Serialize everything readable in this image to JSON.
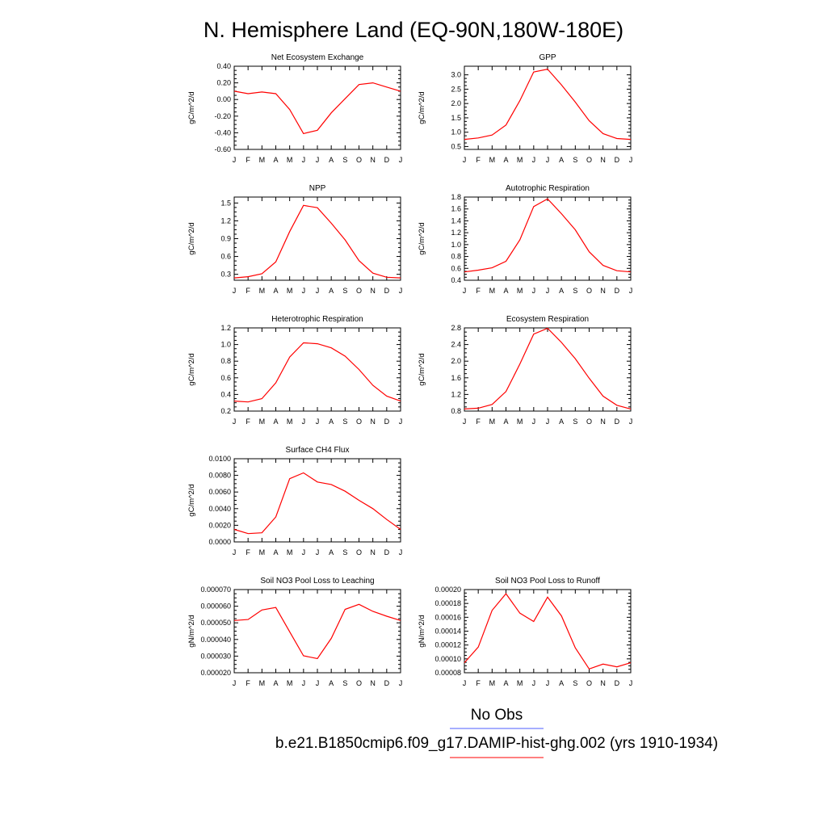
{
  "figure": {
    "title": "N. Hemisphere Land (EQ-90N,180W-180E)",
    "legend": [
      {
        "label": "No Obs",
        "color": "#4d5eff"
      },
      {
        "label": "b.e21.B1850cmip6.f09_g17.DAMIP-hist-ghg.002 (yrs 1910-1934)",
        "color": "#ff0000"
      }
    ],
    "line_color": "#ff0000",
    "axis_color": "#000000"
  },
  "chart_data": [
    {
      "type": "line",
      "title": "Net Ecosystem Exchange",
      "ylabel": "gC/m^2/d",
      "x": [
        "J",
        "F",
        "M",
        "A",
        "M",
        "J",
        "J",
        "A",
        "S",
        "O",
        "N",
        "D",
        "J"
      ],
      "ylim": [
        -0.6,
        0.4
      ],
      "yticks": [
        "0.40",
        "0.20",
        "0.00",
        "-0.20",
        "-0.40",
        "-0.60"
      ],
      "series": [
        {
          "values": [
            0.1,
            0.07,
            0.09,
            0.07,
            -0.12,
            -0.41,
            -0.37,
            -0.16,
            0.01,
            0.18,
            0.2,
            0.15,
            0.1
          ]
        }
      ]
    },
    {
      "type": "line",
      "title": "GPP",
      "ylabel": "gC/m^2/d",
      "x": [
        "J",
        "F",
        "M",
        "A",
        "M",
        "J",
        "J",
        "A",
        "S",
        "O",
        "N",
        "D",
        "J"
      ],
      "ylim": [
        0.4,
        3.3
      ],
      "yticks": [
        "3.0",
        "2.5",
        "2.0",
        "1.5",
        "1.0",
        "0.5"
      ],
      "series": [
        {
          "values": [
            0.75,
            0.8,
            0.9,
            1.25,
            2.1,
            3.1,
            3.2,
            2.65,
            2.05,
            1.4,
            0.95,
            0.78,
            0.75
          ]
        }
      ]
    },
    {
      "type": "line",
      "title": "NPP",
      "ylabel": "gC/m^2/d",
      "x": [
        "J",
        "F",
        "M",
        "A",
        "M",
        "J",
        "J",
        "A",
        "S",
        "O",
        "N",
        "D",
        "J"
      ],
      "ylim": [
        0.2,
        1.6
      ],
      "yticks": [
        "1.5",
        "1.2",
        "0.9",
        "0.6",
        "0.3"
      ],
      "series": [
        {
          "values": [
            0.24,
            0.26,
            0.31,
            0.51,
            1.02,
            1.46,
            1.42,
            1.16,
            0.88,
            0.53,
            0.32,
            0.25,
            0.24
          ]
        }
      ]
    },
    {
      "type": "line",
      "title": "Autotrophic Respiration",
      "ylabel": "gC/m^2/d",
      "x": [
        "J",
        "F",
        "M",
        "A",
        "M",
        "J",
        "J",
        "A",
        "S",
        "O",
        "N",
        "D",
        "J"
      ],
      "ylim": [
        0.4,
        1.8
      ],
      "yticks": [
        "1.8",
        "1.6",
        "1.4",
        "1.2",
        "1.0",
        "0.8",
        "0.6",
        "0.4"
      ],
      "series": [
        {
          "values": [
            0.54,
            0.57,
            0.61,
            0.72,
            1.08,
            1.64,
            1.77,
            1.52,
            1.25,
            0.88,
            0.65,
            0.56,
            0.54
          ]
        }
      ]
    },
    {
      "type": "line",
      "title": "Heterotrophic Respiration",
      "ylabel": "gC/m^2/d",
      "x": [
        "J",
        "F",
        "M",
        "A",
        "M",
        "J",
        "J",
        "A",
        "S",
        "O",
        "N",
        "D",
        "J"
      ],
      "ylim": [
        0.2,
        1.2
      ],
      "yticks": [
        "1.2",
        "1.0",
        "0.8",
        "0.6",
        "0.4",
        "0.2"
      ],
      "series": [
        {
          "values": [
            0.32,
            0.31,
            0.35,
            0.54,
            0.85,
            1.02,
            1.01,
            0.96,
            0.86,
            0.7,
            0.51,
            0.38,
            0.32
          ]
        }
      ]
    },
    {
      "type": "line",
      "title": "Ecosystem Respiration",
      "ylabel": "gC/m^2/d",
      "x": [
        "J",
        "F",
        "M",
        "A",
        "M",
        "J",
        "J",
        "A",
        "S",
        "O",
        "N",
        "D",
        "J"
      ],
      "ylim": [
        0.8,
        2.8
      ],
      "yticks": [
        "2.8",
        "2.4",
        "2.0",
        "1.6",
        "1.2",
        "0.8"
      ],
      "series": [
        {
          "values": [
            0.85,
            0.87,
            0.96,
            1.27,
            1.93,
            2.65,
            2.79,
            2.45,
            2.06,
            1.59,
            1.16,
            0.94,
            0.85
          ]
        }
      ]
    },
    {
      "type": "line",
      "title": "Surface CH4 Flux",
      "ylabel": "gC/m^2/d",
      "x": [
        "J",
        "F",
        "M",
        "A",
        "M",
        "J",
        "J",
        "A",
        "S",
        "O",
        "N",
        "D",
        "J"
      ],
      "ylim": [
        0.0,
        0.01
      ],
      "yticks": [
        "0.0100",
        "0.0080",
        "0.0060",
        "0.0040",
        "0.0020",
        "0.0000"
      ],
      "series": [
        {
          "values": [
            0.0015,
            0.001,
            0.0011,
            0.003,
            0.0076,
            0.0083,
            0.0072,
            0.0069,
            0.0061,
            0.005,
            0.004,
            0.0027,
            0.0015
          ]
        }
      ]
    },
    {
      "type": "line",
      "title": "Soil NO3 Pool Loss to Leaching",
      "ylabel": "gN/m^2/d",
      "x": [
        "J",
        "F",
        "M",
        "A",
        "M",
        "J",
        "J",
        "A",
        "S",
        "O",
        "N",
        "D",
        "J"
      ],
      "ylim": [
        2e-05,
        7e-05
      ],
      "yticks": [
        "0.000070",
        "0.000060",
        "0.000050",
        "0.000040",
        "0.000030",
        "0.000020"
      ],
      "series": [
        {
          "values": [
            5.14e-05,
            5.2e-05,
            5.77e-05,
            5.92e-05,
            4.46e-05,
            3.02e-05,
            2.85e-05,
            4.07e-05,
            5.81e-05,
            6.11e-05,
            5.69e-05,
            5.4e-05,
            5.14e-05
          ]
        }
      ]
    },
    {
      "type": "line",
      "title": "Soil NO3 Pool Loss to Runoff",
      "ylabel": "gN/m^2/d",
      "x": [
        "J",
        "F",
        "M",
        "A",
        "M",
        "J",
        "J",
        "A",
        "S",
        "O",
        "N",
        "D",
        "J"
      ],
      "ylim": [
        8e-05,
        0.0002
      ],
      "yticks": [
        "0.00020",
        "0.00018",
        "0.00016",
        "0.00014",
        "0.00012",
        "0.00010",
        "0.00008"
      ],
      "series": [
        {
          "values": [
            9.45e-05,
            0.000117,
            0.00017,
            0.000194,
            0.000166,
            0.000154,
            0.000189,
            0.000162,
            0.000116,
            8.55e-05,
            9.25e-05,
            8.85e-05,
            9.45e-05
          ]
        }
      ]
    }
  ]
}
